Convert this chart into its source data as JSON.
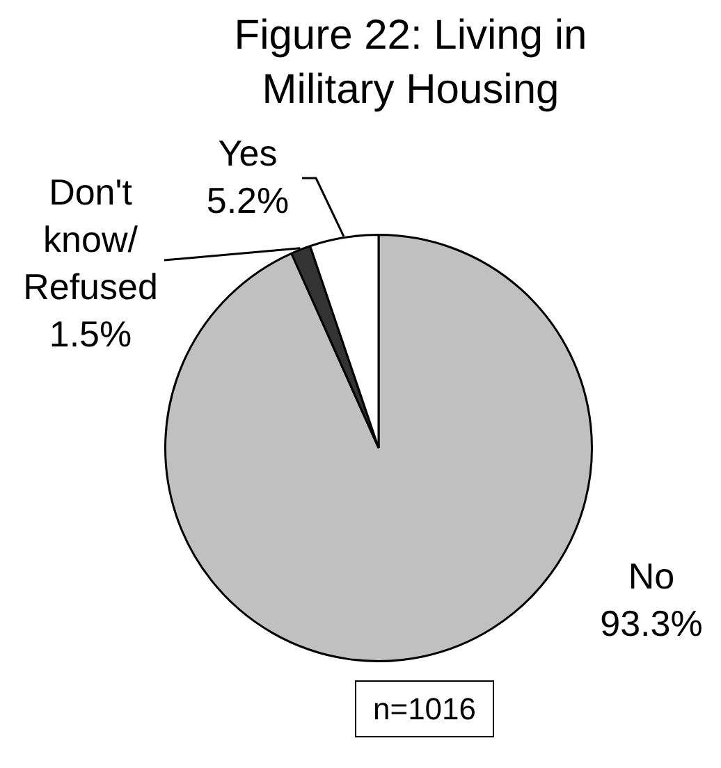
{
  "chart_data": {
    "type": "pie",
    "title": "Figure 22: Living in Military Housing",
    "categories": [
      "No",
      "Don't know/Refused",
      "Yes"
    ],
    "values": [
      93.3,
      1.5,
      5.2
    ],
    "colors": [
      "#c0c0c0",
      "#333333",
      "#ffffff"
    ],
    "value_labels": [
      "93.3%",
      "1.5%",
      "5.2%"
    ],
    "annotations": [
      "n=1016"
    ]
  }
}
